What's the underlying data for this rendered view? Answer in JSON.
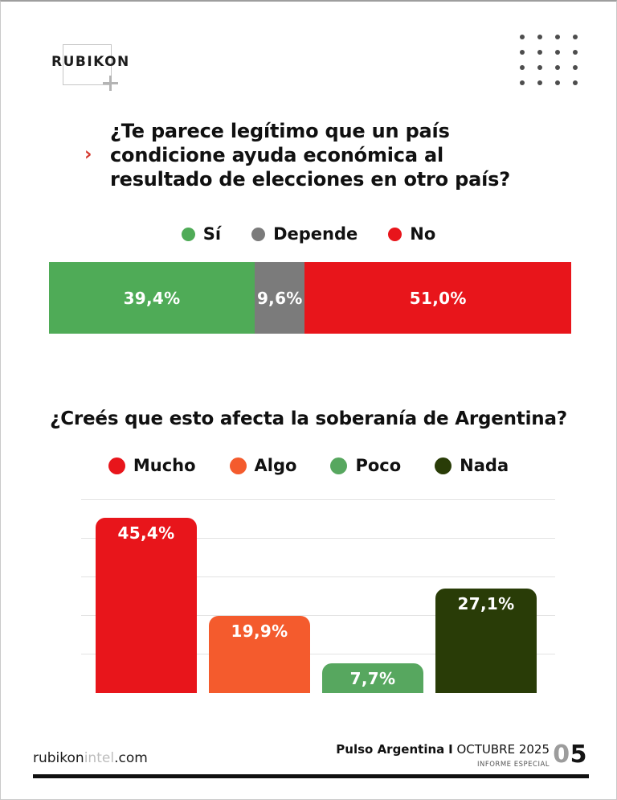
{
  "logo": {
    "text": "RUBIKON"
  },
  "icons": {
    "chevron": "›",
    "plus": "plus-cross",
    "dots_grid": "4x4-dot-grid"
  },
  "question1": {
    "title_lines": [
      "¿Te parece legítimo que un país",
      "condicione ayuda económica al",
      "resultado de elecciones en otro país?"
    ]
  },
  "question2": {
    "title": "¿Creés que esto afecta la soberanía de Argentina?"
  },
  "chart_data": [
    {
      "type": "bar",
      "variant": "horizontal-stacked",
      "title": "¿Te parece legítimo que un país condicione ayuda económica al resultado de elecciones en otro país?",
      "categories": [
        "Sí",
        "Depende",
        "No"
      ],
      "values": [
        39.4,
        9.6,
        51.0
      ],
      "value_labels": [
        "39,4%",
        "9,6%",
        "51,0%"
      ],
      "colors": [
        "#4fab57",
        "#7b7b7b",
        "#e8151b"
      ],
      "xlim": [
        0,
        100
      ],
      "legend_position": "top",
      "grid": false
    },
    {
      "type": "bar",
      "variant": "vertical",
      "title": "¿Creés que esto afecta la soberanía de Argentina?",
      "categories": [
        "Mucho",
        "Algo",
        "Poco",
        "Nada"
      ],
      "values": [
        45.4,
        19.9,
        7.7,
        27.1
      ],
      "value_labels": [
        "45,4%",
        "19,9%",
        "7,7%",
        "27,1%"
      ],
      "colors": [
        "#e8151b",
        "#f45b2d",
        "#57a75f",
        "#293c07"
      ],
      "ylim": [
        0,
        50
      ],
      "gridlines": [
        10,
        20,
        30,
        40,
        50
      ],
      "legend_position": "top",
      "grid": true
    }
  ],
  "footer": {
    "site": {
      "part1": "rubikon",
      "part2": "intel",
      "part3": ".com"
    },
    "report_title": "Pulso Argentina",
    "separator": "I",
    "report_date": "OCTUBRE 2025",
    "report_subtitle": "INFORME ESPECIAL",
    "page_number": {
      "first_digit": "0",
      "second_digit": "5"
    }
  }
}
